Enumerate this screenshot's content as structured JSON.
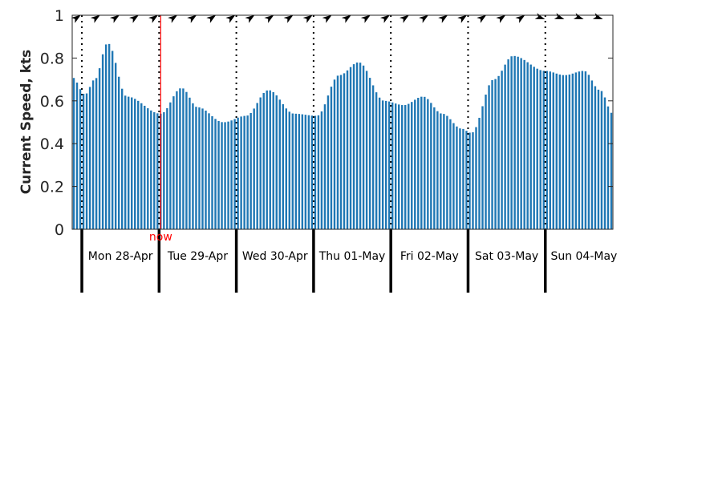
{
  "chart_data": {
    "type": "bar",
    "ylabel": "Current Speed, kts",
    "ylim": [
      0,
      1
    ],
    "yticks": [
      "0",
      "0.2",
      "0.4",
      "0.6",
      "0.8",
      "1"
    ],
    "x_unit": "hours from start of plotted period (Sun 27-Apr ~21:00)",
    "xlim": [
      0,
      168
    ],
    "now_label": "now",
    "now_x": 27.5,
    "days": [
      {
        "label": "Mon 28-Apr",
        "start_x": 3,
        "midnight_x": 3
      },
      {
        "label": "Tue 29-Apr",
        "start_x": 27,
        "midnight_x": 27
      },
      {
        "label": "Wed 30-Apr",
        "start_x": 51,
        "midnight_x": 51
      },
      {
        "label": "Thu 01-May",
        "start_x": 75,
        "midnight_x": 75
      },
      {
        "label": "Fri 02-May",
        "start_x": 99,
        "midnight_x": 99
      },
      {
        "label": "Sat 03-May",
        "start_x": 123,
        "midnight_x": 123
      },
      {
        "label": "Sun 04-May",
        "start_x": 147,
        "midnight_x": 147
      }
    ],
    "direction_arrow_count": 28,
    "grid": false,
    "colors": {
      "bars": "#1f77b4",
      "now_line": "#ff0000",
      "axis": "#262626"
    },
    "speed_keypoints": [
      [
        0,
        0.71
      ],
      [
        4,
        0.63
      ],
      [
        7,
        0.7
      ],
      [
        11,
        0.87
      ],
      [
        17,
        0.62
      ],
      [
        27.5,
        0.54
      ],
      [
        34,
        0.66
      ],
      [
        39,
        0.57
      ],
      [
        47,
        0.5
      ],
      [
        54,
        0.53
      ],
      [
        61,
        0.65
      ],
      [
        69,
        0.54
      ],
      [
        76,
        0.53
      ],
      [
        83,
        0.72
      ],
      [
        89,
        0.78
      ],
      [
        97,
        0.6
      ],
      [
        103,
        0.58
      ],
      [
        109,
        0.62
      ],
      [
        115,
        0.54
      ],
      [
        121,
        0.47
      ],
      [
        124,
        0.45
      ],
      [
        131,
        0.7
      ],
      [
        137,
        0.81
      ],
      [
        147,
        0.74
      ],
      [
        153,
        0.72
      ],
      [
        159,
        0.74
      ],
      [
        164,
        0.65
      ],
      [
        168,
        0.54
      ]
    ]
  }
}
